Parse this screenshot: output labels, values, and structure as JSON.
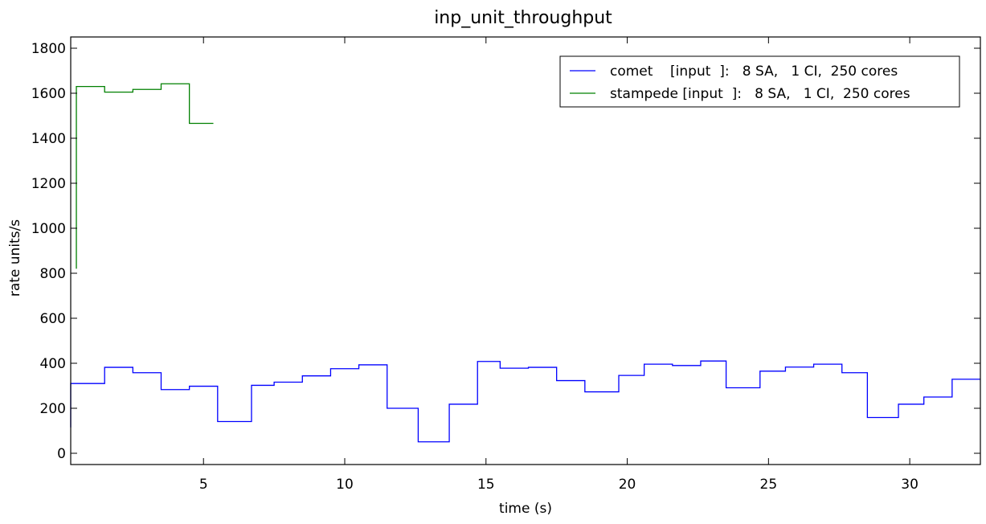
{
  "chart_data": {
    "type": "line",
    "step": true,
    "title": "inp_unit_throughput",
    "xlabel": "time (s)",
    "ylabel": "rate units/s",
    "xlim": [
      0.3,
      32.5
    ],
    "ylim": [
      -50,
      1850
    ],
    "xticks": [
      5,
      10,
      15,
      20,
      25,
      30
    ],
    "yticks": [
      0,
      200,
      400,
      600,
      800,
      1000,
      1200,
      1400,
      1600,
      1800
    ],
    "grid": false,
    "legend_position": "top-right",
    "series": [
      {
        "name": "comet    [input  ]:   8 SA,   1 CI,  250 cores",
        "color": "#0000ff",
        "x": [
          0.3,
          0.3,
          1.5,
          2.5,
          3.5,
          4.5,
          5.5,
          6.7,
          7.5,
          8.5,
          9.5,
          10.5,
          11.5,
          12.6,
          13.7,
          14.7,
          15.5,
          16.5,
          17.5,
          18.5,
          19.7,
          20.6,
          21.6,
          22.6,
          23.5,
          24.7,
          25.6,
          26.6,
          27.6,
          28.5,
          29.6,
          30.5,
          31.5,
          32.5
        ],
        "y": [
          115,
          310,
          382,
          358,
          283,
          298,
          141,
          302,
          316,
          344,
          376,
          393,
          200,
          51,
          218,
          408,
          378,
          382,
          323,
          273,
          346,
          396,
          390,
          410,
          291,
          365,
          383,
          396,
          358,
          159,
          218,
          250,
          329,
          329
        ]
      },
      {
        "name": "stampede [input  ]:   8 SA,   1 CI,  250 cores",
        "color": "#008000",
        "x": [
          0.5,
          0.5,
          1.5,
          2.5,
          3.5,
          4.5,
          5.35
        ],
        "y": [
          820,
          1630,
          1605,
          1617,
          1642,
          1466,
          1466
        ]
      }
    ]
  }
}
